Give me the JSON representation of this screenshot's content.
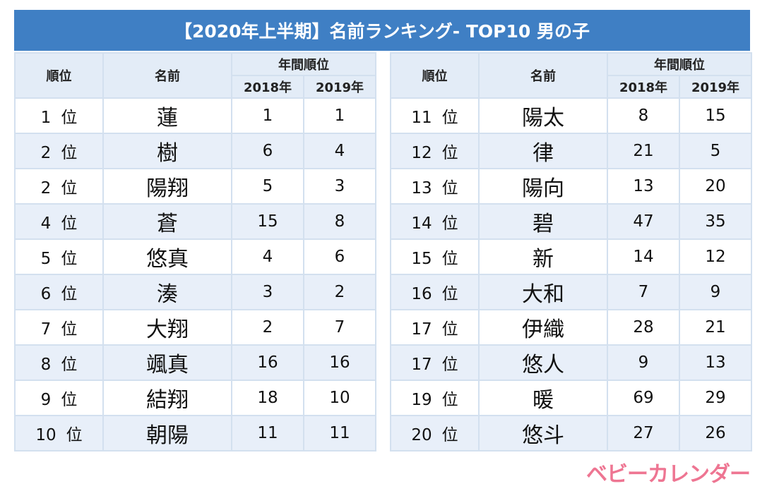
{
  "title": "【2020年上半期】名前ランキング- TOP10 男の子",
  "headers": {
    "rank": "順位",
    "name": "名前",
    "annual": "年間順位",
    "y2018": "2018年",
    "y2019": "2019年"
  },
  "rank_suffix": "位",
  "left": [
    {
      "rank": "1",
      "name": "蓮",
      "y2018": "1",
      "y2019": "1"
    },
    {
      "rank": "2",
      "name": "樹",
      "y2018": "6",
      "y2019": "4"
    },
    {
      "rank": "2",
      "name": "陽翔",
      "y2018": "5",
      "y2019": "3"
    },
    {
      "rank": "4",
      "name": "蒼",
      "y2018": "15",
      "y2019": "8"
    },
    {
      "rank": "5",
      "name": "悠真",
      "y2018": "4",
      "y2019": "6"
    },
    {
      "rank": "6",
      "name": "湊",
      "y2018": "3",
      "y2019": "2"
    },
    {
      "rank": "7",
      "name": "大翔",
      "y2018": "2",
      "y2019": "7"
    },
    {
      "rank": "8",
      "name": "颯真",
      "y2018": "16",
      "y2019": "16"
    },
    {
      "rank": "9",
      "name": "結翔",
      "y2018": "18",
      "y2019": "10"
    },
    {
      "rank": "10",
      "name": "朝陽",
      "y2018": "11",
      "y2019": "11"
    }
  ],
  "right": [
    {
      "rank": "11",
      "name": "陽太",
      "y2018": "8",
      "y2019": "15"
    },
    {
      "rank": "12",
      "name": "律",
      "y2018": "21",
      "y2019": "5"
    },
    {
      "rank": "13",
      "name": "陽向",
      "y2018": "13",
      "y2019": "20"
    },
    {
      "rank": "14",
      "name": "碧",
      "y2018": "47",
      "y2019": "35"
    },
    {
      "rank": "15",
      "name": "新",
      "y2018": "14",
      "y2019": "12"
    },
    {
      "rank": "16",
      "name": "大和",
      "y2018": "7",
      "y2019": "9"
    },
    {
      "rank": "17",
      "name": "伊織",
      "y2018": "28",
      "y2019": "21"
    },
    {
      "rank": "17",
      "name": "悠人",
      "y2018": "9",
      "y2019": "13"
    },
    {
      "rank": "19",
      "name": "暖",
      "y2018": "69",
      "y2019": "29"
    },
    {
      "rank": "20",
      "name": "悠斗",
      "y2018": "27",
      "y2019": "26"
    }
  ],
  "logo": "ベビーカレンダー",
  "colors": {
    "title_bg": "#3f7fc4",
    "header_bg": "#e3ecf7",
    "stripe": "#e8eff9",
    "logo": "#ee7592"
  }
}
